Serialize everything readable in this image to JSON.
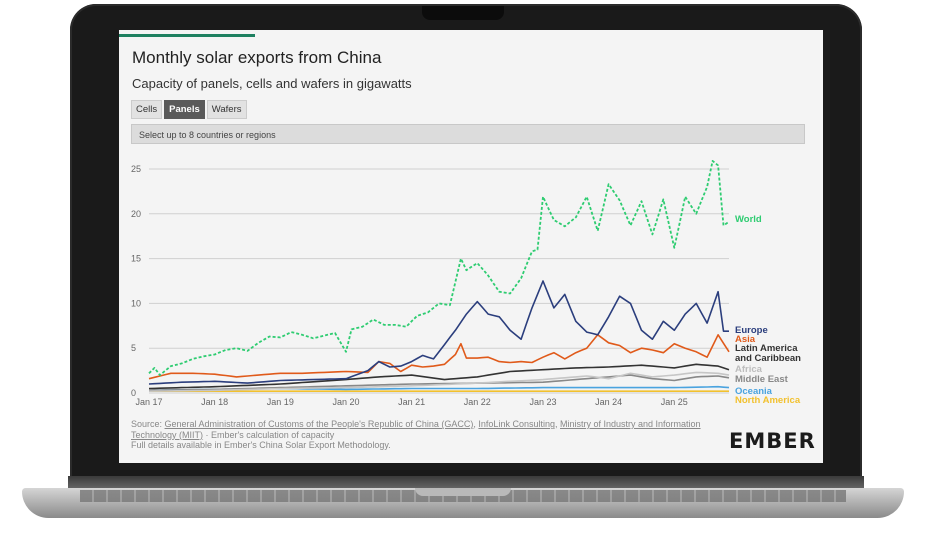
{
  "chart": {
    "title": "Monthly solar exports from China",
    "subtitle": "Capacity of panels, cells and wafers in gigawatts",
    "tabs": [
      {
        "label": "Cells",
        "active": false
      },
      {
        "label": "Panels",
        "active": true
      },
      {
        "label": "Wafers",
        "active": false
      }
    ],
    "selector_placeholder": "Select up to 8 countries or regions",
    "source_line1_prefix": "Source: ",
    "source_link1": "General Administration of Customs of the People's Republic of China (GACC)",
    "source_sep1": ", ",
    "source_link2": "InfoLink Consulting",
    "source_sep2": ", ",
    "source_link3": "Ministry of Industry and Information Technology (MIIT)",
    "source_suffix": " · Ember's calculation of capacity",
    "source_line2": "Full details available in Ember's China Solar Export Methodology.",
    "brand": "EMBER"
  },
  "chart_data": {
    "type": "line",
    "x_start": "2017-01",
    "x_end": "2025-11",
    "x_ticks": [
      "Jan 17",
      "Jan 18",
      "Jan 19",
      "Jan 20",
      "Jan 21",
      "Jan 22",
      "Jan 23",
      "Jan 24",
      "Jan 25"
    ],
    "y_ticks": [
      "0",
      "5",
      "10",
      "15",
      "20",
      "25"
    ],
    "ylim": [
      0,
      26
    ],
    "grid": true,
    "legend": "right, labels at line ends",
    "series": [
      {
        "name": "World",
        "color": "#2ecc71",
        "dashed": true,
        "keypoints": [
          [
            0,
            2.2
          ],
          [
            1,
            2.8
          ],
          [
            2,
            2.0
          ],
          [
            4,
            3.0
          ],
          [
            6,
            3.3
          ],
          [
            8,
            3.8
          ],
          [
            10,
            4.1
          ],
          [
            12,
            4.3
          ],
          [
            14,
            4.8
          ],
          [
            16,
            5.0
          ],
          [
            18,
            4.7
          ],
          [
            20,
            5.6
          ],
          [
            22,
            6.3
          ],
          [
            24,
            6.2
          ],
          [
            26,
            6.8
          ],
          [
            28,
            6.5
          ],
          [
            30,
            6.1
          ],
          [
            32,
            6.4
          ],
          [
            34,
            6.7
          ],
          [
            36,
            4.6
          ],
          [
            37,
            7.1
          ],
          [
            39,
            7.4
          ],
          [
            41,
            8.2
          ],
          [
            43,
            7.6
          ],
          [
            45,
            7.6
          ],
          [
            47,
            7.4
          ],
          [
            49,
            8.6
          ],
          [
            51,
            9.0
          ],
          [
            53,
            10.0
          ],
          [
            55,
            9.8
          ],
          [
            57,
            15.0
          ],
          [
            58,
            13.7
          ],
          [
            60,
            14.5
          ],
          [
            62,
            13.1
          ],
          [
            64,
            11.3
          ],
          [
            66,
            11.1
          ],
          [
            68,
            12.8
          ],
          [
            70,
            15.8
          ],
          [
            71,
            16.0
          ],
          [
            72,
            21.9
          ],
          [
            74,
            19.3
          ],
          [
            76,
            18.6
          ],
          [
            78,
            19.6
          ],
          [
            80,
            21.9
          ],
          [
            82,
            18.1
          ],
          [
            84,
            23.3
          ],
          [
            86,
            21.5
          ],
          [
            88,
            18.7
          ],
          [
            90,
            21.4
          ],
          [
            92,
            17.7
          ],
          [
            94,
            21.6
          ],
          [
            96,
            16.2
          ],
          [
            98,
            21.9
          ],
          [
            100,
            20.0
          ],
          [
            102,
            23.0
          ],
          [
            103,
            25.9
          ],
          [
            104,
            25.4
          ],
          [
            105,
            18.7
          ],
          [
            106,
            19.1
          ]
        ]
      },
      {
        "name": "Europe",
        "color": "#2b3e7d",
        "dashed": false,
        "keypoints": [
          [
            0,
            1.0
          ],
          [
            6,
            1.2
          ],
          [
            12,
            1.3
          ],
          [
            18,
            1.1
          ],
          [
            24,
            1.4
          ],
          [
            30,
            1.5
          ],
          [
            36,
            1.6
          ],
          [
            40,
            2.5
          ],
          [
            42,
            3.5
          ],
          [
            44,
            2.9
          ],
          [
            46,
            3.0
          ],
          [
            48,
            3.5
          ],
          [
            50,
            4.2
          ],
          [
            52,
            3.8
          ],
          [
            54,
            5.4
          ],
          [
            56,
            7.0
          ],
          [
            58,
            8.8
          ],
          [
            60,
            10.2
          ],
          [
            62,
            8.8
          ],
          [
            64,
            8.5
          ],
          [
            66,
            7.0
          ],
          [
            68,
            6.0
          ],
          [
            70,
            9.5
          ],
          [
            72,
            12.5
          ],
          [
            74,
            9.5
          ],
          [
            76,
            11.0
          ],
          [
            78,
            8.0
          ],
          [
            80,
            6.8
          ],
          [
            82,
            6.5
          ],
          [
            84,
            8.5
          ],
          [
            86,
            10.8
          ],
          [
            88,
            10.0
          ],
          [
            90,
            7.0
          ],
          [
            92,
            6.0
          ],
          [
            94,
            8.0
          ],
          [
            96,
            7.0
          ],
          [
            98,
            8.8
          ],
          [
            100,
            10.0
          ],
          [
            102,
            7.8
          ],
          [
            104,
            11.3
          ],
          [
            105,
            6.9
          ],
          [
            106,
            6.9
          ]
        ]
      },
      {
        "name": "Asia",
        "color": "#e05a1a",
        "dashed": false,
        "keypoints": [
          [
            0,
            1.6
          ],
          [
            4,
            2.2
          ],
          [
            8,
            2.2
          ],
          [
            12,
            2.1
          ],
          [
            16,
            1.8
          ],
          [
            20,
            2.0
          ],
          [
            24,
            2.2
          ],
          [
            28,
            2.2
          ],
          [
            32,
            2.3
          ],
          [
            36,
            2.4
          ],
          [
            40,
            2.3
          ],
          [
            42,
            3.5
          ],
          [
            44,
            3.3
          ],
          [
            46,
            2.4
          ],
          [
            48,
            3.1
          ],
          [
            50,
            2.9
          ],
          [
            52,
            3.0
          ],
          [
            54,
            3.2
          ],
          [
            56,
            4.3
          ],
          [
            57,
            5.5
          ],
          [
            58,
            3.9
          ],
          [
            60,
            3.9
          ],
          [
            62,
            4.0
          ],
          [
            64,
            3.5
          ],
          [
            66,
            3.4
          ],
          [
            68,
            3.5
          ],
          [
            70,
            3.4
          ],
          [
            72,
            4.0
          ],
          [
            74,
            4.5
          ],
          [
            76,
            3.8
          ],
          [
            78,
            4.5
          ],
          [
            80,
            5.0
          ],
          [
            82,
            6.5
          ],
          [
            84,
            5.6
          ],
          [
            86,
            5.3
          ],
          [
            88,
            4.5
          ],
          [
            90,
            5.0
          ],
          [
            92,
            4.8
          ],
          [
            94,
            4.5
          ],
          [
            96,
            5.5
          ],
          [
            98,
            5.0
          ],
          [
            100,
            4.6
          ],
          [
            102,
            4.0
          ],
          [
            104,
            6.5
          ],
          [
            106,
            4.6
          ]
        ]
      },
      {
        "name": "Latin America and Caribbean",
        "color": "#333333",
        "dashed": false,
        "keypoints": [
          [
            0,
            0.5
          ],
          [
            12,
            0.7
          ],
          [
            24,
            1.0
          ],
          [
            36,
            1.5
          ],
          [
            42,
            1.8
          ],
          [
            48,
            2.0
          ],
          [
            54,
            1.5
          ],
          [
            60,
            1.8
          ],
          [
            66,
            2.4
          ],
          [
            72,
            2.6
          ],
          [
            78,
            2.8
          ],
          [
            84,
            2.9
          ],
          [
            90,
            3.1
          ],
          [
            96,
            2.8
          ],
          [
            100,
            3.2
          ],
          [
            104,
            3.0
          ],
          [
            106,
            2.6
          ]
        ]
      },
      {
        "name": "Africa",
        "color": "#c6c6c6",
        "dashed": false,
        "keypoints": [
          [
            0,
            0.2
          ],
          [
            12,
            0.3
          ],
          [
            24,
            0.5
          ],
          [
            36,
            0.6
          ],
          [
            48,
            0.8
          ],
          [
            60,
            1.1
          ],
          [
            72,
            1.5
          ],
          [
            80,
            1.9
          ],
          [
            84,
            1.6
          ],
          [
            88,
            2.2
          ],
          [
            92,
            1.8
          ],
          [
            96,
            2.0
          ],
          [
            100,
            2.3
          ],
          [
            104,
            2.2
          ],
          [
            106,
            2.0
          ]
        ]
      },
      {
        "name": "Middle East",
        "color": "#888888",
        "dashed": false,
        "keypoints": [
          [
            0,
            0.3
          ],
          [
            12,
            0.4
          ],
          [
            24,
            0.6
          ],
          [
            36,
            0.8
          ],
          [
            48,
            1.0
          ],
          [
            60,
            1.1
          ],
          [
            72,
            1.2
          ],
          [
            80,
            1.6
          ],
          [
            84,
            1.8
          ],
          [
            88,
            2.0
          ],
          [
            92,
            1.6
          ],
          [
            96,
            1.4
          ],
          [
            100,
            1.8
          ],
          [
            104,
            1.9
          ],
          [
            106,
            1.7
          ]
        ]
      },
      {
        "name": "Oceania",
        "color": "#4aa3df",
        "dashed": false,
        "keypoints": [
          [
            0,
            0.3
          ],
          [
            12,
            0.4
          ],
          [
            24,
            0.5
          ],
          [
            36,
            0.4
          ],
          [
            48,
            0.5
          ],
          [
            60,
            0.5
          ],
          [
            72,
            0.6
          ],
          [
            84,
            0.6
          ],
          [
            96,
            0.6
          ],
          [
            104,
            0.7
          ],
          [
            106,
            0.6
          ]
        ]
      },
      {
        "name": "North America",
        "color": "#f2c12e",
        "dashed": false,
        "keypoints": [
          [
            0,
            0.2
          ],
          [
            24,
            0.2
          ],
          [
            48,
            0.2
          ],
          [
            72,
            0.2
          ],
          [
            96,
            0.2
          ],
          [
            106,
            0.2
          ]
        ]
      }
    ]
  }
}
